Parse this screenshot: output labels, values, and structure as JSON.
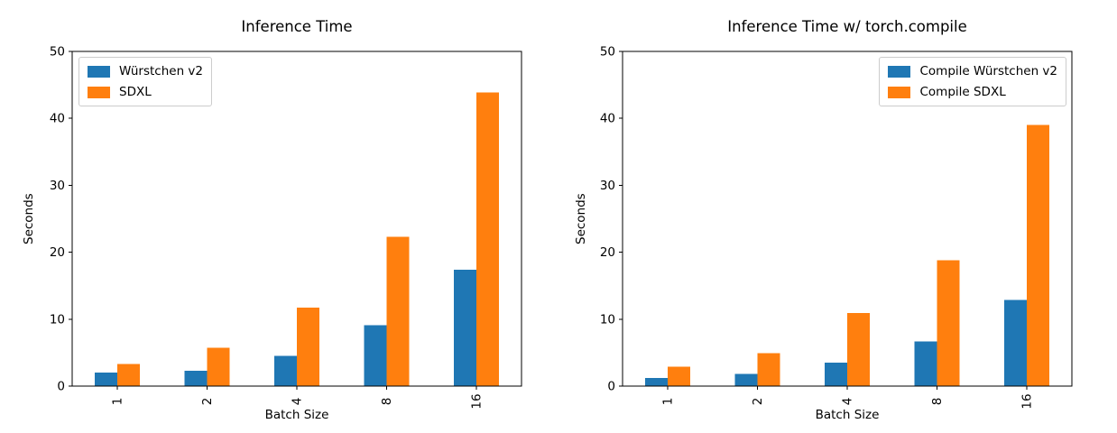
{
  "figure": {
    "background": "#ffffff"
  },
  "chart_data": [
    {
      "type": "bar",
      "title": "Inference Time",
      "xlabel": "Batch Size",
      "ylabel": "Seconds",
      "categories": [
        "1",
        "2",
        "4",
        "8",
        "16"
      ],
      "series": [
        {
          "name": "Würstchen v2",
          "color": "#1f77b4",
          "values": [
            2.0,
            2.3,
            4.5,
            9.1,
            17.4
          ]
        },
        {
          "name": "SDXL",
          "color": "#ff7f0e",
          "values": [
            3.3,
            5.7,
            11.7,
            22.3,
            43.9
          ]
        }
      ],
      "ylim": [
        0,
        50
      ],
      "yticks": [
        0,
        10,
        20,
        30,
        40,
        50
      ],
      "grid": false,
      "legend_position": "upper left",
      "xtick_rotation": 90
    },
    {
      "type": "bar",
      "title": "Inference Time w/ torch.compile",
      "xlabel": "Batch Size",
      "ylabel": "Seconds",
      "categories": [
        "1",
        "2",
        "4",
        "8",
        "16"
      ],
      "series": [
        {
          "name": "Compile Würstchen v2",
          "color": "#1f77b4",
          "values": [
            1.2,
            1.8,
            3.5,
            6.7,
            12.9
          ]
        },
        {
          "name": "Compile SDXL",
          "color": "#ff7f0e",
          "values": [
            2.9,
            4.9,
            10.9,
            18.8,
            39.0
          ]
        }
      ],
      "ylim": [
        0,
        50
      ],
      "yticks": [
        0,
        10,
        20,
        30,
        40,
        50
      ],
      "grid": false,
      "legend_position": "upper right",
      "xtick_rotation": 90
    }
  ]
}
